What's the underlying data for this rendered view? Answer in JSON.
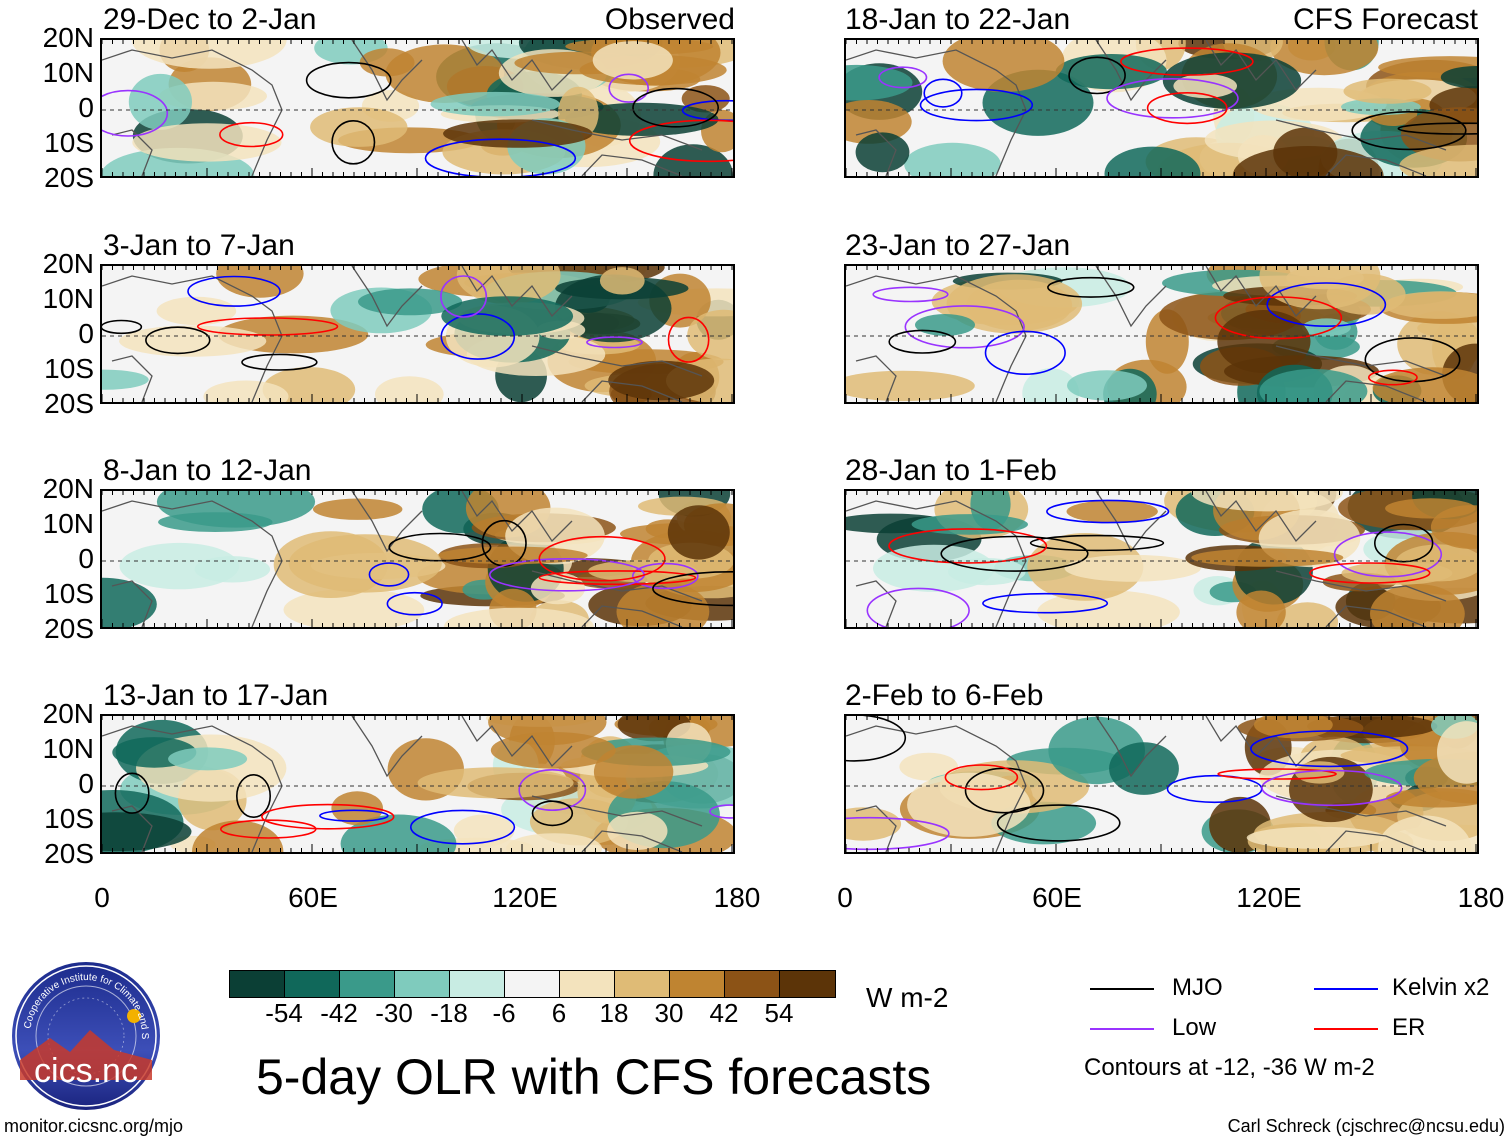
{
  "panels": [
    {
      "id": "p1",
      "title": "29-Dec to 2-Jan",
      "label": "Observed",
      "column": "left",
      "row": 0
    },
    {
      "id": "p2",
      "title": "3-Jan to 7-Jan",
      "label": "",
      "column": "left",
      "row": 1
    },
    {
      "id": "p3",
      "title": "8-Jan to 12-Jan",
      "label": "",
      "column": "left",
      "row": 2
    },
    {
      "id": "p4",
      "title": "13-Jan to 17-Jan",
      "label": "",
      "column": "left",
      "row": 3
    },
    {
      "id": "p5",
      "title": "18-Jan to 22-Jan",
      "label": "CFS Forecast",
      "column": "right",
      "row": 0
    },
    {
      "id": "p6",
      "title": "23-Jan to 27-Jan",
      "label": "",
      "column": "right",
      "row": 1
    },
    {
      "id": "p7",
      "title": "28-Jan to 1-Feb",
      "label": "",
      "column": "right",
      "row": 2
    },
    {
      "id": "p8",
      "title": "2-Feb to 6-Feb",
      "label": "",
      "column": "right",
      "row": 3
    }
  ],
  "lat_labels": [
    "20N",
    "10N",
    "0",
    "10S",
    "20S"
  ],
  "lon_labels": [
    "0",
    "60E",
    "120E",
    "180"
  ],
  "colorbar": {
    "colors": [
      "#0b3f35",
      "#10685a",
      "#3a9a8a",
      "#7fcbbd",
      "#c8ece3",
      "#f4f4f4",
      "#f3e3bd",
      "#dfbb76",
      "#bf8431",
      "#8c5316",
      "#5c3408"
    ],
    "ticks": [
      "-54",
      "-42",
      "-30",
      "-18",
      "-6",
      "6",
      "18",
      "30",
      "42",
      "54"
    ],
    "units": "W m-2"
  },
  "title": "5-day OLR with CFS forecasts",
  "legend": {
    "items": [
      {
        "label": "MJO",
        "color": "#000000"
      },
      {
        "label": "Kelvin x2",
        "color": "#0000ff"
      },
      {
        "label": "Low",
        "color": "#9933ff"
      },
      {
        "label": "ER",
        "color": "#ff0000"
      }
    ],
    "note": "Contours at -12, -36 W m-2"
  },
  "logo_text": "cics.nc",
  "logo_ring_text": "Cooperative Institute for Climate and Satellites",
  "footer_left": "monitor.cicsnc.org/mjo",
  "footer_right": "Carl Schreck (cjschrec@ncsu.edu)"
}
